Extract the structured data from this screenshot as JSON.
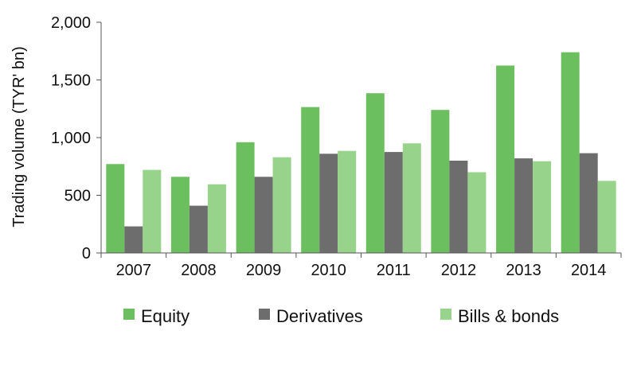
{
  "chart_data": {
    "type": "bar",
    "title": "",
    "xlabel": "",
    "ylabel": "Trading volume (TYR' bn)",
    "categories": [
      "2007",
      "2008",
      "2009",
      "2010",
      "2011",
      "2012",
      "2013",
      "2014"
    ],
    "ylim": [
      0,
      2000
    ],
    "yticks": [
      0,
      500,
      1000,
      1500,
      2000
    ],
    "ytick_labels": [
      "0",
      "500",
      "1,000",
      "1,500",
      "2,000"
    ],
    "grid": false,
    "legend_position": "bottom",
    "series": [
      {
        "name": "Equity",
        "color": "#6cbf5f",
        "values": [
          770,
          660,
          960,
          1265,
          1385,
          1240,
          1625,
          1740
        ]
      },
      {
        "name": "Derivatives",
        "color": "#6d6d6d",
        "values": [
          230,
          410,
          660,
          860,
          875,
          800,
          820,
          865
        ]
      },
      {
        "name": "Bills & bonds",
        "color": "#97d38b",
        "values": [
          720,
          595,
          830,
          885,
          950,
          700,
          795,
          625
        ]
      }
    ]
  }
}
